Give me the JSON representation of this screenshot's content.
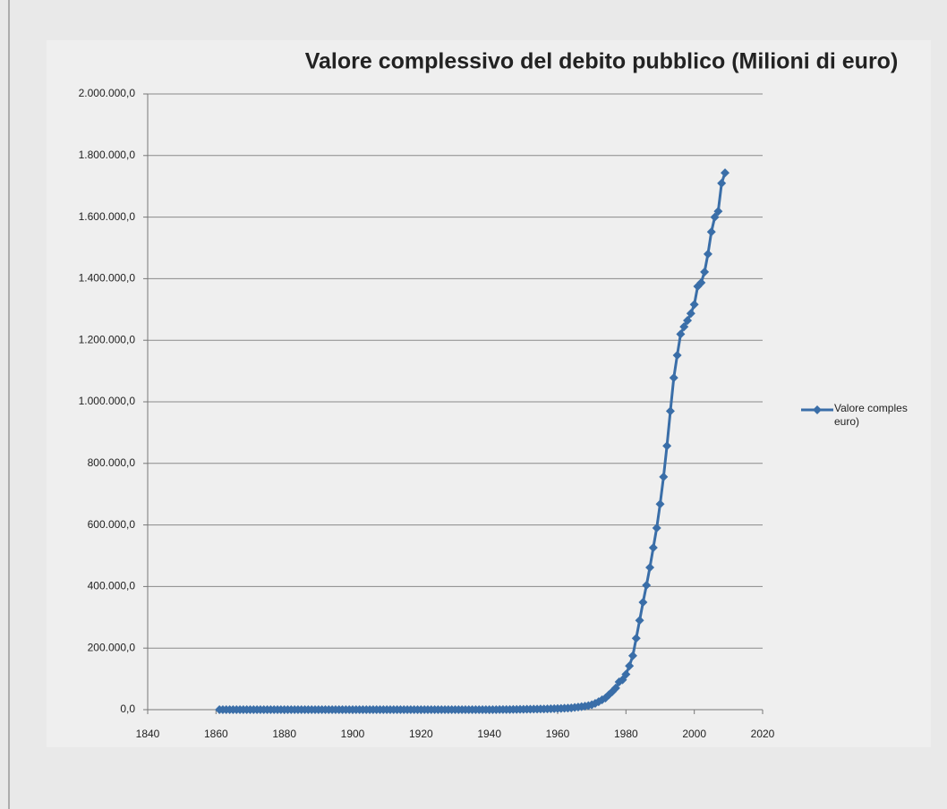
{
  "chart_data": {
    "type": "line",
    "title": "Valore complessivo del debito pubblico (Milioni di euro)",
    "x": [
      1861,
      1862,
      1863,
      1864,
      1865,
      1866,
      1867,
      1868,
      1869,
      1870,
      1871,
      1872,
      1873,
      1874,
      1875,
      1876,
      1877,
      1878,
      1879,
      1880,
      1881,
      1882,
      1883,
      1884,
      1885,
      1886,
      1887,
      1888,
      1889,
      1890,
      1891,
      1892,
      1893,
      1894,
      1895,
      1896,
      1897,
      1898,
      1899,
      1900,
      1901,
      1902,
      1903,
      1904,
      1905,
      1906,
      1907,
      1908,
      1909,
      1910,
      1911,
      1912,
      1913,
      1914,
      1915,
      1916,
      1917,
      1918,
      1919,
      1920,
      1921,
      1922,
      1923,
      1924,
      1925,
      1926,
      1927,
      1928,
      1929,
      1930,
      1931,
      1932,
      1933,
      1934,
      1935,
      1936,
      1937,
      1938,
      1939,
      1940,
      1941,
      1942,
      1943,
      1944,
      1945,
      1946,
      1947,
      1948,
      1949,
      1950,
      1951,
      1952,
      1953,
      1954,
      1955,
      1956,
      1957,
      1958,
      1959,
      1960,
      1961,
      1962,
      1963,
      1964,
      1965,
      1966,
      1967,
      1968,
      1969,
      1970,
      1971,
      1972,
      1973,
      1974,
      1975,
      1976,
      1977,
      1978,
      1979,
      1980,
      1981,
      1982,
      1983,
      1984,
      1985,
      1986,
      1987,
      1988,
      1989,
      1990,
      1991,
      1992,
      1993,
      1994,
      1995,
      1996,
      1997,
      1998,
      1999,
      2000,
      2001,
      2002,
      2003,
      2004,
      2005,
      2006,
      2007,
      2008,
      2009
    ],
    "series": [
      {
        "name": "Valore comples euro)",
        "color": "#3a6ea8",
        "values": [
          1,
          1,
          2,
          2,
          2,
          3,
          3,
          4,
          4,
          4,
          5,
          5,
          5,
          5,
          5,
          5,
          5,
          6,
          6,
          6,
          6,
          6,
          6,
          6,
          6,
          6,
          7,
          7,
          7,
          7,
          7,
          7,
          7,
          7,
          7,
          7,
          7,
          7,
          7,
          7,
          7,
          7,
          7,
          7,
          7,
          7,
          8,
          8,
          8,
          8,
          8,
          8,
          8,
          8,
          10,
          12,
          16,
          20,
          48,
          49,
          52,
          52,
          51,
          50,
          50,
          45,
          46,
          47,
          48,
          49,
          50,
          52,
          55,
          56,
          58,
          63,
          69,
          75,
          84,
          100,
          140,
          170,
          230,
          270,
          300,
          450,
          590,
          780,
          950,
          1100,
          1300,
          1500,
          1700,
          1900,
          2100,
          2300,
          2600,
          2900,
          3300,
          3700,
          4100,
          4600,
          5200,
          5900,
          7200,
          8500,
          9700,
          11200,
          13100,
          15900,
          20200,
          25700,
          32000,
          37800,
          48400,
          58600,
          70000,
          90000,
          97000,
          115000,
          142000,
          175000,
          232000,
          290000,
          349000,
          404000,
          462000,
          526000,
          590000,
          668000,
          756000,
          857000,
          970000,
          1078000,
          1151000,
          1220000,
          1244000,
          1264000,
          1287000,
          1316000,
          1375000,
          1387000,
          1422000,
          1480000,
          1552000,
          1600000,
          1619000,
          1710000,
          1744000
        ]
      }
    ],
    "xlim": [
      1840,
      2020
    ],
    "xticks": [
      1840,
      1860,
      1880,
      1900,
      1920,
      1940,
      1960,
      1980,
      2000,
      2020
    ],
    "ylim": [
      0,
      2000000
    ],
    "yticks": [
      {
        "value": 0,
        "label": "0,0"
      },
      {
        "value": 200000,
        "label": "200.000,0"
      },
      {
        "value": 400000,
        "label": "400.000,0"
      },
      {
        "value": 600000,
        "label": "600.000,0"
      },
      {
        "value": 800000,
        "label": "800.000,0"
      },
      {
        "value": 1000000,
        "label": "1.000.000,0"
      },
      {
        "value": 1200000,
        "label": "1.200.000,0"
      },
      {
        "value": 1400000,
        "label": "1.400.000,0"
      },
      {
        "value": 1600000,
        "label": "1.600.000,0"
      },
      {
        "value": 1800000,
        "label": "1.800.000,0"
      },
      {
        "value": 2000000,
        "label": "2.000.000,0"
      }
    ],
    "grid": true,
    "legend": "right"
  }
}
